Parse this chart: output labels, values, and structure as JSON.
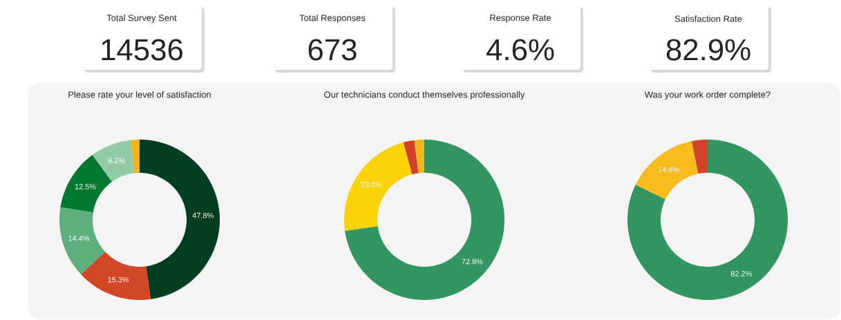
{
  "chart_data": [
    {
      "type": "other",
      "title": "Total Survey Sent",
      "annotations": [
        "14536"
      ]
    },
    {
      "type": "other",
      "title": "Total Responses",
      "annotations": [
        "673"
      ]
    },
    {
      "type": "other",
      "title": "Response Rate",
      "annotations": [
        "4.6%"
      ]
    },
    {
      "type": "other",
      "title": "Satisfaction Rate",
      "annotations": [
        "82.9%"
      ]
    },
    {
      "type": "donut",
      "title": "Please rate your level of satisfaction",
      "categories": [
        null,
        null,
        null,
        null,
        null,
        null
      ],
      "values": [
        47.8,
        15.3,
        14.4,
        12.5,
        8.2,
        1.8
      ],
      "colors": [
        "#003e1f",
        "#d24726",
        "#5fae7e",
        "#00782f",
        "#93cba6",
        "#f2b41c"
      ],
      "value_labels": [
        "47.8%",
        "15.3%",
        "14.4%",
        "12.5%",
        "8.2%",
        null
      ]
    },
    {
      "type": "donut",
      "title": "Our technicians conduct themselves professionally",
      "categories": [
        null,
        null,
        null,
        null
      ],
      "values": [
        72.8,
        23.0,
        2.2,
        2.0
      ],
      "colors": [
        "#339560",
        "#fcd20a",
        "#d13f27",
        "#f5b51c"
      ],
      "value_labels": [
        "72.8%",
        "23.0%",
        null,
        null
      ]
    },
    {
      "type": "donut",
      "title": "Was your work order complete?",
      "categories": [
        null,
        null,
        null
      ],
      "values": [
        82.2,
        14.6,
        3.2
      ],
      "colors": [
        "#339560",
        "#f7bb1e",
        "#d0432b"
      ],
      "value_labels": [
        "82.2%",
        "14.6%",
        null
      ]
    }
  ]
}
